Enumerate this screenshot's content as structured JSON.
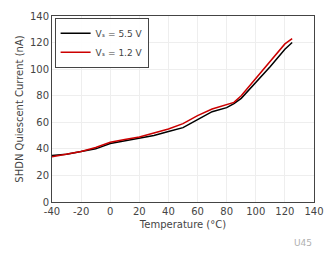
{
  "chart_data": {
    "type": "line",
    "xlabel": "Temperature (°C)",
    "ylabel": "SHDN Quiescent Current (nA)",
    "xlim": [
      -40,
      140
    ],
    "ylim": [
      0,
      140
    ],
    "xticks": [
      -40,
      -20,
      0,
      20,
      40,
      60,
      80,
      100,
      120,
      140
    ],
    "yticks": [
      0,
      20,
      40,
      60,
      80,
      100,
      120,
      140
    ],
    "series": [
      {
        "name": "Vₛ = 5.5 V",
        "color": "#000000",
        "x": [
          -40,
          -30,
          -20,
          -10,
          0,
          10,
          20,
          30,
          40,
          50,
          60,
          70,
          80,
          85,
          90,
          100,
          110,
          120,
          125
        ],
        "values": [
          35,
          36,
          38,
          40,
          44,
          46,
          48,
          50,
          53,
          56,
          62,
          68,
          71,
          74,
          78,
          90,
          102,
          115,
          120
        ]
      },
      {
        "name": "Vₛ = 1.2 V",
        "color": "#cc0000",
        "x": [
          -40,
          -30,
          -20,
          -10,
          0,
          10,
          20,
          30,
          40,
          50,
          60,
          70,
          80,
          85,
          90,
          100,
          110,
          120,
          125
        ],
        "values": [
          34,
          36,
          38,
          41,
          45,
          47,
          49,
          52,
          55,
          59,
          65,
          70,
          73,
          75,
          80,
          93,
          106,
          119,
          123
        ]
      }
    ],
    "grid": true,
    "legend": "upper left",
    "annotations": [
      "U45"
    ]
  }
}
